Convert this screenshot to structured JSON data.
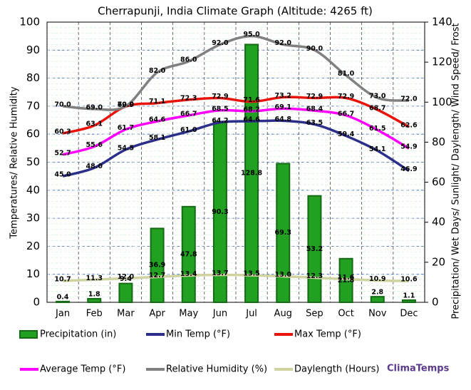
{
  "chart_data": {
    "type": "combo",
    "title": "Cherrapunji, India Climate Graph (Altitude: 4265 ft)",
    "y_label": "Temperatures/ Relative Humidity",
    "y2_label": "Precipitation/ Wet Days/ Sunlight/ Daylength/ Wind Speed/ Frost",
    "categories": [
      "Jan",
      "Feb",
      "Mar",
      "Apr",
      "May",
      "Jun",
      "Jul",
      "Aug",
      "Sep",
      "Oct",
      "Nov",
      "Dec"
    ],
    "ylim": [
      0,
      100
    ],
    "yticks": [
      0,
      10,
      20,
      30,
      40,
      50,
      60,
      70,
      80,
      90,
      100
    ],
    "y2lim": [
      0,
      140
    ],
    "y2ticks": [
      0,
      20,
      40,
      60,
      80,
      100,
      120,
      140
    ],
    "grid": true,
    "series": [
      {
        "name": "Precipitation (in)",
        "type": "bar",
        "axis": "y2",
        "color": "#22a022",
        "values": [
          0.4,
          1.8,
          9.4,
          36.9,
          47.8,
          90.3,
          128.8,
          69.3,
          53.2,
          21.8,
          2.8,
          1.1
        ]
      },
      {
        "name": "Min Temp (°F)",
        "type": "line",
        "color": "#2b2f8a",
        "values": [
          45,
          48,
          54.5,
          58.1,
          61,
          64.2,
          64.6,
          64.8,
          63.5,
          59.4,
          54.1,
          46.9
        ],
        "value_labels": [
          "45.0",
          "48.0",
          "54.5",
          "58.1",
          "61.0",
          "64.2",
          "64.6",
          "64.8",
          "63.5",
          "59.4",
          "54.1",
          "46.9"
        ]
      },
      {
        "name": "Max Temp (°F)",
        "type": "line",
        "color": "#e8140c",
        "values": [
          60.3,
          63.1,
          69.9,
          71.1,
          72.3,
          72.9,
          71.6,
          73.2,
          72.9,
          72.9,
          68.7,
          62.6
        ],
        "value_labels": [
          "60.3",
          "63.1",
          "69.9",
          "71.1",
          "72.3",
          "72.9",
          "71.6",
          "73.2",
          "72.9",
          "72.9",
          "68.7",
          "62.6"
        ]
      },
      {
        "name": "Average Temp (°F)",
        "type": "line",
        "color": "#ff00ff",
        "values": [
          52.7,
          55.6,
          61.7,
          64.6,
          66.7,
          68.5,
          68.2,
          69.1,
          68.4,
          66.7,
          61.5,
          54.9
        ],
        "value_labels": [
          "52.7",
          "55.6",
          "61.7",
          "64.6",
          "66.7",
          "68.5",
          "68.2",
          "69.1",
          "68.4",
          "66.7",
          "61.5",
          "54.9"
        ]
      },
      {
        "name": "Relative Humidity (%)",
        "type": "line",
        "color": "#808080",
        "values": [
          70,
          69,
          70,
          82,
          86,
          92,
          95,
          92,
          90,
          81,
          73,
          72
        ],
        "value_labels": [
          "70.0",
          "69.0",
          "70.0",
          "82.0",
          "86.0",
          "92.0",
          "95.0",
          "92.0",
          "90.0",
          "81.0",
          "73.0",
          "72.0"
        ]
      },
      {
        "name": "Daylength (Hours)",
        "type": "line",
        "axis": "y2",
        "color": "#cfd3a0",
        "values": [
          10.7,
          11.3,
          12,
          12.7,
          13.4,
          13.7,
          13.5,
          13,
          12.3,
          11.6,
          10.9,
          10.6
        ],
        "value_labels": [
          "10.7",
          "11.3",
          "12.0",
          "12.7",
          "13.4",
          "13.7",
          "13.5",
          "13.0",
          "12.3",
          "11.6",
          "10.9",
          "10.6"
        ]
      }
    ],
    "brand": "ClimaTemps"
  }
}
